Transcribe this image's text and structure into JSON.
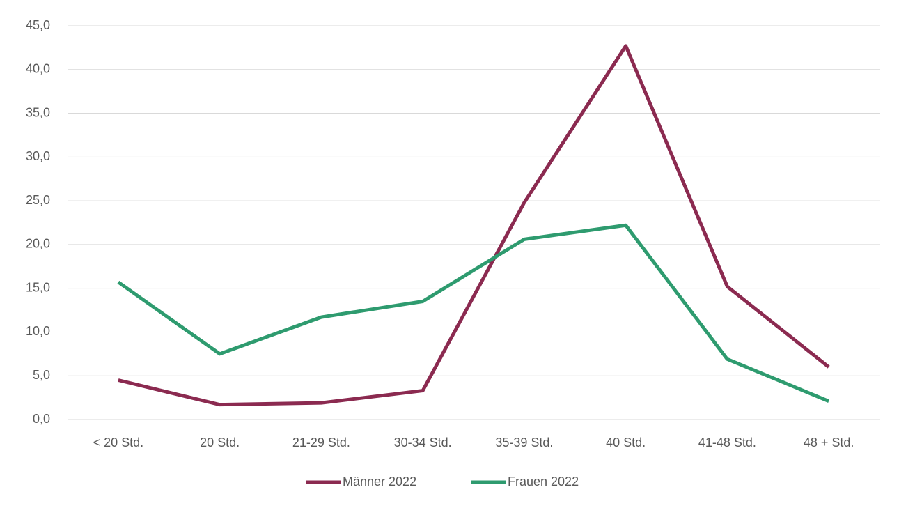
{
  "chart_data": {
    "type": "line",
    "categories": [
      "< 20 Std.",
      "20 Std.",
      "21-29 Std.",
      "30-34 Std.",
      "35-39 Std.",
      "40 Std.",
      "41-48 Std.",
      "48 + Std."
    ],
    "series": [
      {
        "name": "Männer 2022",
        "color": "#8b2a50",
        "values": [
          4.5,
          1.7,
          1.9,
          3.3,
          24.8,
          42.7,
          15.2,
          6.0
        ]
      },
      {
        "name": "Frauen 2022",
        "color": "#2e9b6f",
        "values": [
          15.7,
          7.5,
          11.7,
          13.5,
          20.6,
          22.2,
          6.9,
          2.1
        ]
      }
    ],
    "ylim": [
      0,
      45
    ],
    "yticks": [
      {
        "value": 0,
        "label": "0,0"
      },
      {
        "value": 5,
        "label": "5,0"
      },
      {
        "value": 10,
        "label": "10,0"
      },
      {
        "value": 15,
        "label": "15,0"
      },
      {
        "value": 20,
        "label": "20,0"
      },
      {
        "value": 25,
        "label": "25,0"
      },
      {
        "value": 30,
        "label": "30,0"
      },
      {
        "value": 35,
        "label": "35,0"
      },
      {
        "value": 40,
        "label": "40,0"
      },
      {
        "value": 45,
        "label": "45,0"
      }
    ],
    "grid": true,
    "legend": "bottom"
  }
}
